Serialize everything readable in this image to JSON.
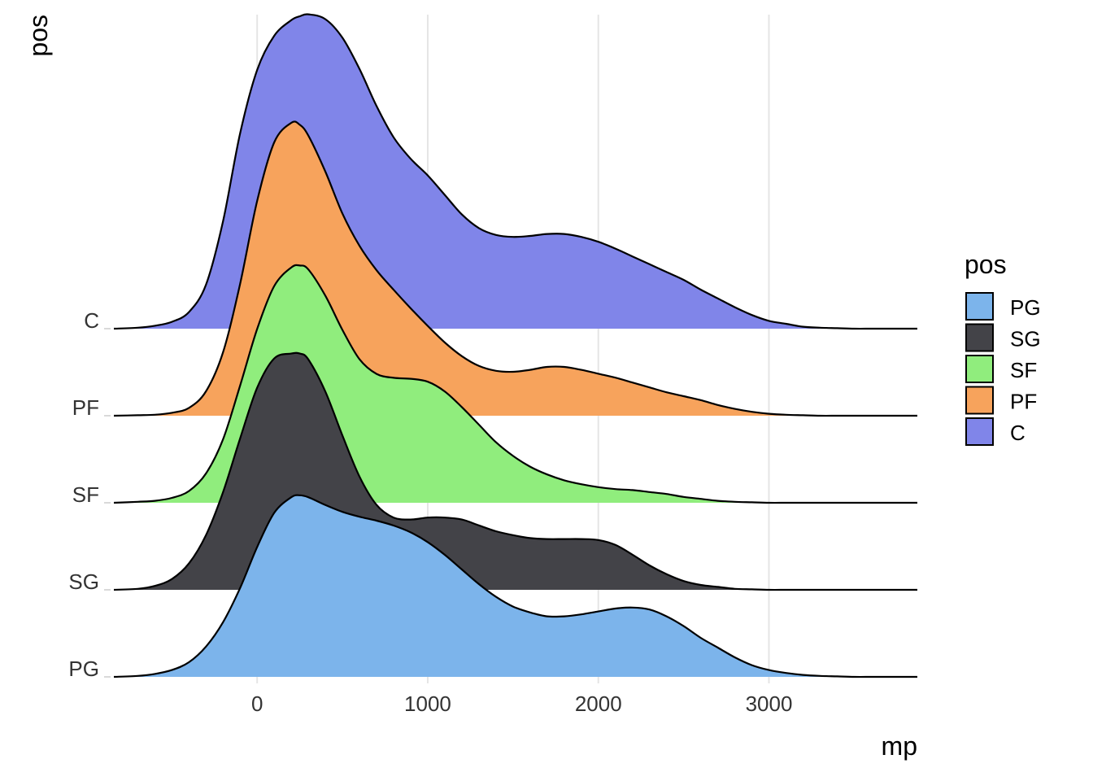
{
  "chart_data": {
    "type": "area",
    "subtype": "ridgeline",
    "title": "",
    "xlabel": "mp",
    "ylabel": "pos",
    "xlim": [
      -840,
      3870
    ],
    "x_ticks": [
      0,
      1000,
      2000,
      3000
    ],
    "x_tick_labels": [
      "0",
      "1000",
      "2000",
      "3000"
    ],
    "grid": "vertical major lines",
    "legend": {
      "title": "pos",
      "position": "right"
    },
    "categories": [
      "PG",
      "SG",
      "SF",
      "PF",
      "C"
    ],
    "x": [
      -840,
      -700,
      -600,
      -500,
      -400,
      -300,
      -200,
      -100,
      0,
      100,
      200,
      250,
      300,
      400,
      500,
      600,
      700,
      800,
      900,
      1000,
      1100,
      1200,
      1300,
      1400,
      1500,
      1600,
      1700,
      1800,
      1900,
      2000,
      2100,
      2200,
      2300,
      2400,
      2500,
      2600,
      2700,
      2800,
      2900,
      3000,
      3100,
      3200,
      3300,
      3400,
      3500,
      3600,
      3700,
      3870
    ],
    "series": [
      {
        "name": "PG",
        "color": "#7cb4eb",
        "values": [
          0.0,
          0.01,
          0.03,
          0.07,
          0.15,
          0.31,
          0.56,
          0.91,
          1.33,
          1.68,
          1.84,
          1.86,
          1.84,
          1.76,
          1.69,
          1.64,
          1.6,
          1.55,
          1.48,
          1.38,
          1.25,
          1.1,
          0.95,
          0.82,
          0.72,
          0.66,
          0.62,
          0.62,
          0.64,
          0.67,
          0.7,
          0.71,
          0.69,
          0.62,
          0.52,
          0.4,
          0.3,
          0.2,
          0.12,
          0.07,
          0.04,
          0.02,
          0.01,
          0.005,
          0.0,
          0.0,
          0.0,
          0.0
        ]
      },
      {
        "name": "SG",
        "color": "#434348",
        "values": [
          0.0,
          0.01,
          0.04,
          0.11,
          0.27,
          0.56,
          1.0,
          1.55,
          2.07,
          2.37,
          2.42,
          2.42,
          2.36,
          2.03,
          1.58,
          1.16,
          0.87,
          0.74,
          0.72,
          0.74,
          0.74,
          0.72,
          0.66,
          0.6,
          0.56,
          0.53,
          0.52,
          0.52,
          0.52,
          0.51,
          0.46,
          0.36,
          0.25,
          0.16,
          0.09,
          0.05,
          0.03,
          0.01,
          0.005,
          0.0,
          0.0,
          0.0,
          0.0,
          0.0,
          0.0,
          0.0,
          0.0,
          0.0
        ]
      },
      {
        "name": "SF",
        "color": "#90ed7d",
        "values": [
          0.0,
          0.01,
          0.02,
          0.05,
          0.12,
          0.3,
          0.65,
          1.2,
          1.78,
          2.22,
          2.41,
          2.43,
          2.39,
          2.12,
          1.77,
          1.47,
          1.32,
          1.28,
          1.27,
          1.24,
          1.14,
          0.98,
          0.8,
          0.62,
          0.48,
          0.37,
          0.29,
          0.23,
          0.19,
          0.16,
          0.14,
          0.13,
          0.11,
          0.09,
          0.06,
          0.04,
          0.02,
          0.01,
          0.005,
          0.0,
          0.0,
          0.0,
          0.0,
          0.0,
          0.0,
          0.0,
          0.0,
          0.0
        ]
      },
      {
        "name": "PF",
        "color": "#f7a35c",
        "values": [
          0.0,
          0.005,
          0.01,
          0.03,
          0.08,
          0.25,
          0.65,
          1.35,
          2.2,
          2.8,
          3.0,
          2.98,
          2.87,
          2.5,
          2.07,
          1.74,
          1.49,
          1.29,
          1.1,
          0.92,
          0.75,
          0.61,
          0.51,
          0.46,
          0.45,
          0.47,
          0.5,
          0.5,
          0.47,
          0.43,
          0.39,
          0.34,
          0.29,
          0.24,
          0.2,
          0.16,
          0.11,
          0.07,
          0.04,
          0.02,
          0.01,
          0.005,
          0.0,
          0.0,
          0.0,
          0.0,
          0.0,
          0.0
        ]
      },
      {
        "name": "C",
        "color": "#8085e9",
        "values": [
          0.0,
          0.01,
          0.03,
          0.07,
          0.17,
          0.45,
          1.1,
          2.0,
          2.65,
          3.0,
          3.16,
          3.2,
          3.22,
          3.17,
          2.98,
          2.66,
          2.28,
          1.96,
          1.74,
          1.57,
          1.37,
          1.17,
          1.03,
          0.96,
          0.94,
          0.95,
          0.97,
          0.97,
          0.94,
          0.89,
          0.82,
          0.74,
          0.66,
          0.58,
          0.5,
          0.4,
          0.31,
          0.22,
          0.14,
          0.08,
          0.05,
          0.02,
          0.01,
          0.005,
          0.0,
          0.0,
          0.0,
          0.0
        ]
      }
    ]
  }
}
